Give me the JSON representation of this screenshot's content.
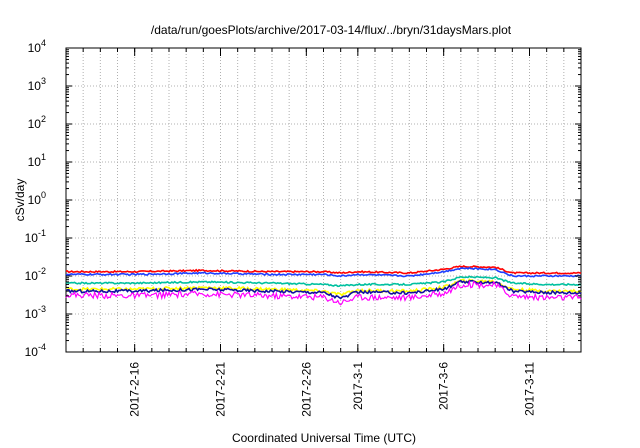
{
  "chart_data": {
    "type": "line",
    "title": "/data/run/goesPlots/archive/2017-03-14/flux/../bryn/31daysMars.plot",
    "xlabel": "Coordinated Universal Time (UTC)",
    "ylabel": "cSv/day",
    "y_scale": "log",
    "ylim": [
      0.0001,
      10000
    ],
    "xlim": [
      "2017-02-12",
      "2017-03-14"
    ],
    "y_ticks": [
      {
        "base": "10",
        "exp": "-4",
        "value": 0.0001
      },
      {
        "base": "10",
        "exp": "-3",
        "value": 0.001
      },
      {
        "base": "10",
        "exp": "-2",
        "value": 0.01
      },
      {
        "base": "10",
        "exp": "-1",
        "value": 0.1
      },
      {
        "base": "10",
        "exp": "0",
        "value": 1
      },
      {
        "base": "10",
        "exp": "1",
        "value": 10
      },
      {
        "base": "10",
        "exp": "2",
        "value": 100
      },
      {
        "base": "10",
        "exp": "3",
        "value": 1000
      },
      {
        "base": "10",
        "exp": "4",
        "value": 10000
      }
    ],
    "x_ticks": [
      {
        "label": "2017-2-16",
        "date": "2017-02-16"
      },
      {
        "label": "2017-2-21",
        "date": "2017-02-21"
      },
      {
        "label": "2017-2-26",
        "date": "2017-02-26"
      },
      {
        "label": "2017-3-1",
        "date": "2017-03-01"
      },
      {
        "label": "2017-3-6",
        "date": "2017-03-06"
      },
      {
        "label": "2017-3-11",
        "date": "2017-03-11"
      }
    ],
    "grid": true,
    "legend": "none",
    "series": [
      {
        "color": "#ff0000",
        "dates": [
          "2017-02-12",
          "2017-02-16",
          "2017-02-20",
          "2017-02-24",
          "2017-02-27",
          "2017-02-28",
          "2017-03-01",
          "2017-03-04",
          "2017-03-06",
          "2017-03-07",
          "2017-03-09",
          "2017-03-10",
          "2017-03-12",
          "2017-03-14"
        ],
        "values": [
          0.013,
          0.013,
          0.014,
          0.013,
          0.013,
          0.012,
          0.013,
          0.012,
          0.015,
          0.018,
          0.017,
          0.012,
          0.012,
          0.012
        ]
      },
      {
        "color": "#1f3fff",
        "dates": [
          "2017-02-12",
          "2017-02-16",
          "2017-02-20",
          "2017-02-24",
          "2017-02-27",
          "2017-02-28",
          "2017-03-01",
          "2017-03-04",
          "2017-03-06",
          "2017-03-07",
          "2017-03-09",
          "2017-03-10",
          "2017-03-12",
          "2017-03-14"
        ],
        "values": [
          0.011,
          0.011,
          0.012,
          0.011,
          0.011,
          0.01,
          0.011,
          0.01,
          0.013,
          0.016,
          0.015,
          0.01,
          0.01,
          0.01
        ]
      },
      {
        "color": "#00c0a0",
        "dates": [
          "2017-02-12",
          "2017-02-16",
          "2017-02-20",
          "2017-02-24",
          "2017-02-27",
          "2017-02-28",
          "2017-03-01",
          "2017-03-04",
          "2017-03-06",
          "2017-03-07",
          "2017-03-09",
          "2017-03-10",
          "2017-03-12",
          "2017-03-14"
        ],
        "values": [
          0.0065,
          0.0065,
          0.007,
          0.0065,
          0.006,
          0.0055,
          0.006,
          0.006,
          0.007,
          0.0095,
          0.009,
          0.0065,
          0.006,
          0.006
        ]
      },
      {
        "color": "#ffff00",
        "dates": [
          "2017-02-12",
          "2017-02-16",
          "2017-02-20",
          "2017-02-24",
          "2017-02-27",
          "2017-02-28",
          "2017-03-01",
          "2017-03-04",
          "2017-03-06",
          "2017-03-07",
          "2017-03-09",
          "2017-03-10",
          "2017-03-12",
          "2017-03-14"
        ],
        "values": [
          0.0045,
          0.0045,
          0.005,
          0.0045,
          0.004,
          0.0032,
          0.0042,
          0.004,
          0.005,
          0.0075,
          0.0072,
          0.0045,
          0.004,
          0.004
        ]
      },
      {
        "color": "#1010a0",
        "dates": [
          "2017-02-12",
          "2017-02-16",
          "2017-02-20",
          "2017-02-24",
          "2017-02-27",
          "2017-02-28",
          "2017-03-01",
          "2017-03-04",
          "2017-03-06",
          "2017-03-07",
          "2017-03-09",
          "2017-03-10",
          "2017-03-12",
          "2017-03-14"
        ],
        "values": [
          0.004,
          0.004,
          0.0045,
          0.004,
          0.0037,
          0.0026,
          0.0038,
          0.0036,
          0.0045,
          0.007,
          0.0068,
          0.004,
          0.0037,
          0.0036
        ]
      },
      {
        "color": "#ff00ff",
        "dates": [
          "2017-02-12",
          "2017-02-16",
          "2017-02-20",
          "2017-02-24",
          "2017-02-27",
          "2017-02-28",
          "2017-03-01",
          "2017-03-04",
          "2017-03-06",
          "2017-03-07",
          "2017-03-09",
          "2017-03-10",
          "2017-03-12",
          "2017-03-14"
        ],
        "values": [
          0.0032,
          0.003,
          0.0034,
          0.003,
          0.0028,
          0.002,
          0.0028,
          0.0027,
          0.0035,
          0.006,
          0.0058,
          0.003,
          0.0027,
          0.0027
        ]
      }
    ]
  }
}
